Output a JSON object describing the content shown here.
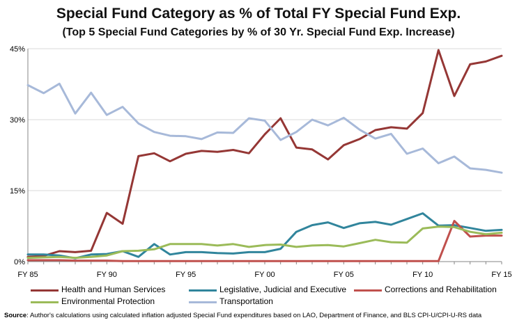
{
  "chart_data": {
    "type": "line",
    "title": "Special Fund Category as % of Total FY Special Fund Exp.",
    "subtitle": "(Top 5 Special Fund Categories by % of 30 Yr. Special Fund Exp. Increase)",
    "xlabel": "",
    "ylabel": "",
    "ylim": [
      0,
      45
    ],
    "yticks": [
      0,
      15,
      30,
      45
    ],
    "ytick_labels": [
      "0%",
      "15%",
      "30%",
      "45%"
    ],
    "x": [
      1985,
      1986,
      1987,
      1988,
      1989,
      1990,
      1991,
      1992,
      1993,
      1994,
      1995,
      1996,
      1997,
      1998,
      1999,
      2000,
      2001,
      2002,
      2003,
      2004,
      2005,
      2006,
      2007,
      2008,
      2009,
      2010,
      2011,
      2012,
      2013,
      2014,
      2015
    ],
    "xlim": [
      1985,
      2015
    ],
    "xticks": [
      1985,
      1990,
      1995,
      2000,
      2005,
      2010,
      2015
    ],
    "xtick_labels": [
      "FY 85",
      "FY 90",
      "FY 95",
      "FY 00",
      "FY 05",
      "FY 10",
      "FY 15"
    ],
    "series": [
      {
        "name": "Health and Human Services",
        "color": "#953735",
        "values": [
          1.0,
          1.2,
          2.2,
          2.0,
          2.3,
          10.3,
          8.0,
          22.3,
          22.9,
          21.2,
          22.8,
          23.4,
          23.2,
          23.6,
          22.9,
          26.9,
          30.3,
          24.1,
          23.7,
          21.6,
          24.6,
          25.9,
          27.8,
          28.4,
          28.1,
          31.4,
          44.7,
          35.0,
          41.7,
          42.3,
          43.5
        ]
      },
      {
        "name": "Legislative, Judicial and Executive",
        "color": "#31859c",
        "values": [
          1.5,
          1.5,
          1.3,
          0.7,
          1.5,
          1.6,
          2.2,
          1.0,
          3.7,
          1.5,
          2.0,
          2.0,
          1.8,
          1.7,
          2.0,
          2.0,
          2.7,
          6.3,
          7.7,
          8.3,
          7.1,
          8.1,
          8.4,
          7.8,
          9.0,
          10.2,
          7.6,
          7.7,
          7.1,
          6.5,
          6.7
        ]
      },
      {
        "name": "Corrections and Rehabilitation",
        "color": "#c0504d",
        "values": [
          0.3,
          0.3,
          0.3,
          0.2,
          0.2,
          0.2,
          0.1,
          0.1,
          0.1,
          0.1,
          0.1,
          0.1,
          0.1,
          0.1,
          0.1,
          0.1,
          0.1,
          0.1,
          0.1,
          0.1,
          0.1,
          0.1,
          0.1,
          0.1,
          0.1,
          0.1,
          0.1,
          8.6,
          5.3,
          5.5,
          5.5
        ]
      },
      {
        "name": "Environmental Protection",
        "color": "#9bbb59",
        "values": [
          0.8,
          0.9,
          1.0,
          0.8,
          1.0,
          1.3,
          2.2,
          2.3,
          2.6,
          3.7,
          3.7,
          3.7,
          3.4,
          3.7,
          3.1,
          3.5,
          3.6,
          3.1,
          3.4,
          3.5,
          3.2,
          3.9,
          4.6,
          4.1,
          4.0,
          7.0,
          7.4,
          7.3,
          6.3,
          5.8,
          6.1
        ]
      },
      {
        "name": "Transportation",
        "color": "#a7b9d9",
        "values": [
          37.3,
          35.6,
          37.6,
          31.3,
          35.7,
          31.0,
          32.7,
          29.2,
          27.4,
          26.6,
          26.5,
          25.9,
          27.3,
          27.2,
          30.3,
          29.8,
          25.7,
          27.4,
          30.0,
          28.8,
          30.4,
          27.9,
          26.0,
          27.0,
          22.8,
          23.9,
          20.8,
          22.2,
          19.7,
          19.4,
          18.8
        ]
      }
    ],
    "legend": "bottom"
  },
  "source": {
    "label": "Source",
    "text": ": Author's calculations using calculated inflation adjusted Special Fund expenditures based on LAO, Department of Finance, and BLS CPI-U/CPI-U-RS data"
  }
}
